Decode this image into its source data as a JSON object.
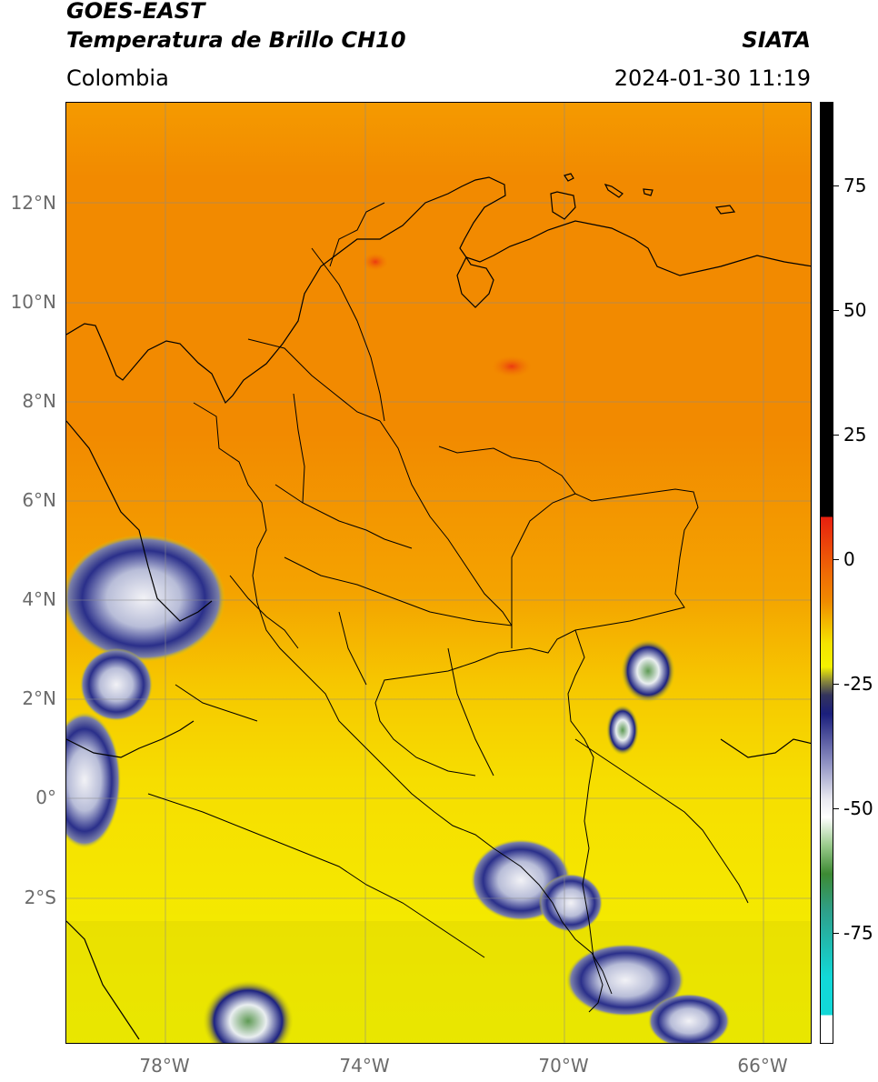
{
  "header": {
    "satellite": "GOES-EAST",
    "product": "Temperatura de Brillo CH10",
    "agency": "SIATA",
    "region": "Colombia",
    "timestamp": "2024-01-30 11:19"
  },
  "map": {
    "lat_labels": [
      "12°N",
      "10°N",
      "8°N",
      "6°N",
      "4°N",
      "2°N",
      "0°",
      "2°S"
    ],
    "lon_labels": [
      "78°W",
      "74°W",
      "70°W",
      "66°W"
    ],
    "extent": {
      "lon_min": -80,
      "lon_max": -65,
      "lat_min": -5,
      "lat_max": 14
    }
  },
  "colorbar": {
    "tick_labels": [
      "75",
      "50",
      "25",
      "0",
      "-25",
      "-50",
      "-75"
    ],
    "range": [
      -95,
      90
    ],
    "colors": {
      "warm": "#000000",
      "red": "#e8200f",
      "orange": "#f08400",
      "yellow": "#f4f200",
      "navy": "#1a1e7c",
      "white": "#ffffff",
      "green": "#3d8a33",
      "cyan": "#12d8d8"
    }
  }
}
